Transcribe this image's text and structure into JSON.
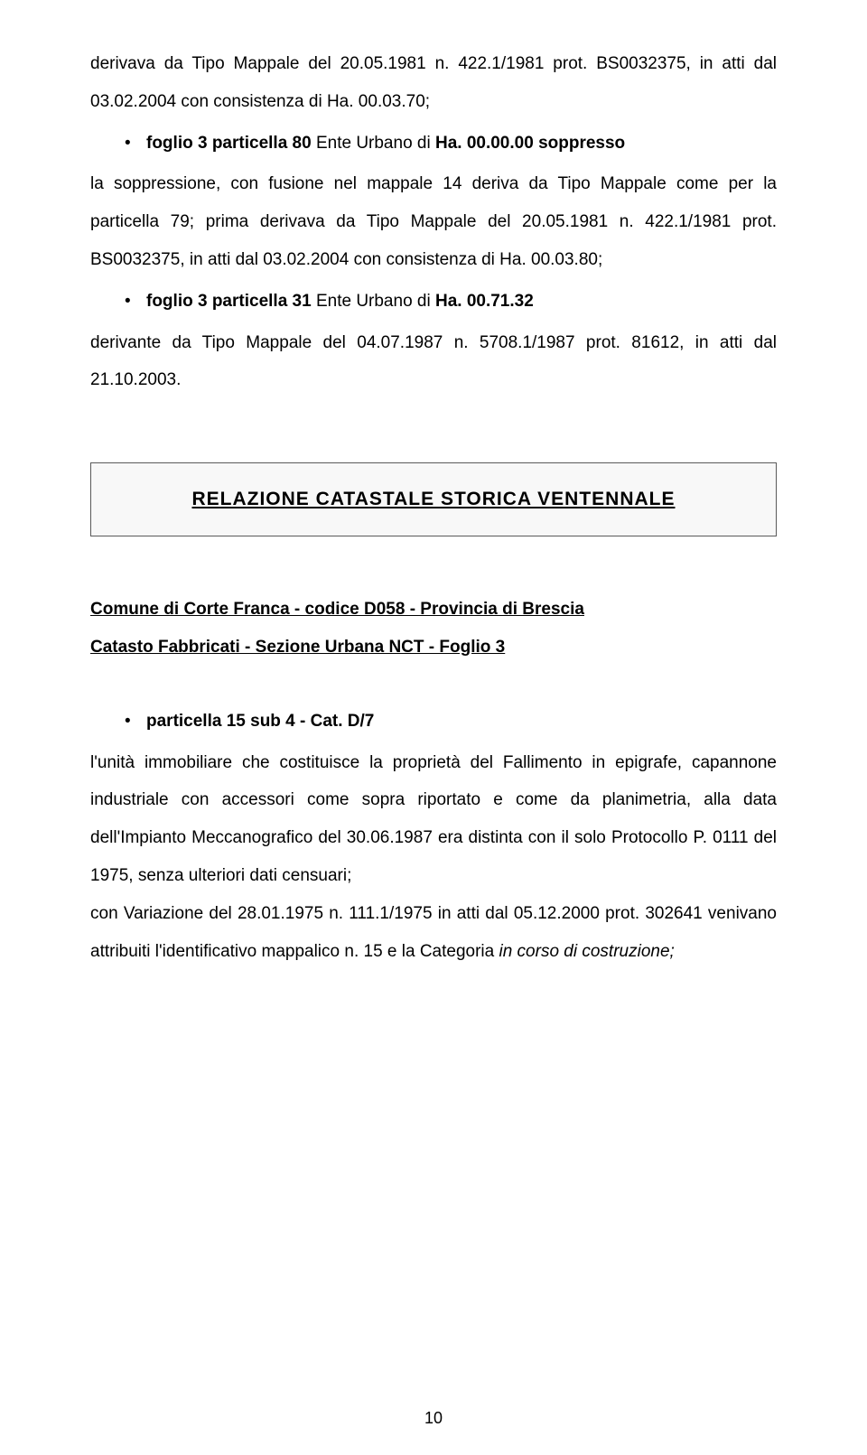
{
  "topBlock": {
    "p1a": "derivava da Tipo Mappale del 20.05.1981 n. 422.1/1981 prot. BS0032375, in atti dal 03.02.2004 con consistenza di Ha. 00.03.70;",
    "bullet1_bold": "foglio 3 particella 80",
    "bullet1_rest": " Ente Urbano di ",
    "bullet1_bold2": "Ha. 00.00.00 soppresso",
    "p2": "la soppressione, con fusione nel mappale 14 deriva da Tipo Mappale come per la particella 79; prima derivava da Tipo Mappale del 20.05.1981 n. 422.1/1981 prot. BS0032375, in atti dal 03.02.2004 con consistenza di  Ha. 00.03.80;",
    "bullet2_bold": "foglio 3 particella 31",
    "bullet2_rest": " Ente Urbano di ",
    "bullet2_bold2": "Ha. 00.71.32",
    "p3": "derivante da Tipo Mappale del 04.07.1987 n. 5708.1/1987 prot. 81612, in atti dal 21.10.2003."
  },
  "sectionBox": {
    "title": "RELAZIONE  CATASTALE  STORICA  VENTENNALE"
  },
  "subtitleBlock": {
    "line1": "Comune di Corte Franca - codice D058 - Provincia di Brescia",
    "line2": "Catasto Fabbricati - Sezione Urbana NCT - Foglio 3"
  },
  "bottomBlock": {
    "bullet_bold": "particella 15 sub 4   - Cat. D/7",
    "p1": "l'unità immobiliare che costituisce la proprietà del Fallimento in epigrafe, capannone industriale con accessori come sopra riportato e come da planimetria, alla data dell'Impianto Meccanografico del 30.06.1987 era distinta con il solo Protocollo P. 0111 del 1975, senza ulteriori dati censuari;",
    "p2": "con Variazione del 28.01.1975 n. 111.1/1975 in atti dal 05.12.2000 prot. 302641 venivano attribuiti l'identificativo mappalico n. 15 e la Categoria ",
    "p2_italic": "in corso di costruzione;"
  },
  "pageNumber": "10",
  "styling": {
    "textColor": "#000000",
    "backgroundColor": "#ffffff",
    "boxBorderColor": "#5a5a5a",
    "boxBackgroundColor": "#f8f8f8",
    "bodyFontSize": 19,
    "titleFontSize": 21,
    "pageWidth": 960,
    "pageHeight": 1611
  }
}
